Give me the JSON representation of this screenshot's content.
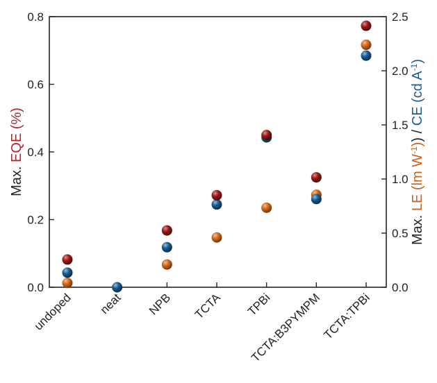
{
  "chart_data": {
    "type": "scatter",
    "categories": [
      "undoped",
      "neat",
      "NPB",
      "TCTA",
      "TPBi",
      "TCTA:B3PYMPM",
      "TCTA:TPBi"
    ],
    "left_axis": {
      "label_prefix": "Max. ",
      "label_main": "EQE (%)",
      "ylim": [
        0.0,
        0.8
      ],
      "ticks": [
        0.0,
        0.2,
        0.4,
        0.6,
        0.8
      ],
      "tick_labels": [
        "0.0",
        "0.2",
        "0.4",
        "0.6",
        "0.8"
      ]
    },
    "right_axis": {
      "label_prefix": "Max. ",
      "label_le": "LE (lm W",
      "label_le_sup": "-1",
      "label_sep": ") / ",
      "label_ce": "CE (cd A",
      "label_ce_sup": "-1",
      "label_end": ")",
      "ylim": [
        0.0,
        2.5
      ],
      "ticks": [
        0.0,
        0.5,
        1.0,
        1.5,
        2.0,
        2.5
      ],
      "tick_labels": [
        "0.0",
        "0.5",
        "1.0",
        "1.5",
        "2.0",
        "2.5"
      ]
    },
    "series": [
      {
        "key": "eqe",
        "axis": "left",
        "color": "#9b1b1b",
        "values": [
          0.082,
          0.0,
          0.168,
          0.272,
          0.45,
          0.325,
          0.773
        ]
      },
      {
        "key": "le",
        "axis": "right",
        "color": "#c8621e",
        "values": [
          0.04,
          0.0,
          0.21,
          0.46,
          0.735,
          0.855,
          2.24
        ]
      },
      {
        "key": "ce",
        "axis": "right",
        "color": "#1a5c8e",
        "values": [
          0.135,
          0.0,
          0.37,
          0.765,
          1.385,
          0.815,
          2.14
        ]
      }
    ],
    "colors": {
      "eqe_label": "#b3262a",
      "le_label": "#c8621e",
      "ce_label": "#1e5a96",
      "text": "#222222"
    },
    "grid": false,
    "legend": "none"
  }
}
